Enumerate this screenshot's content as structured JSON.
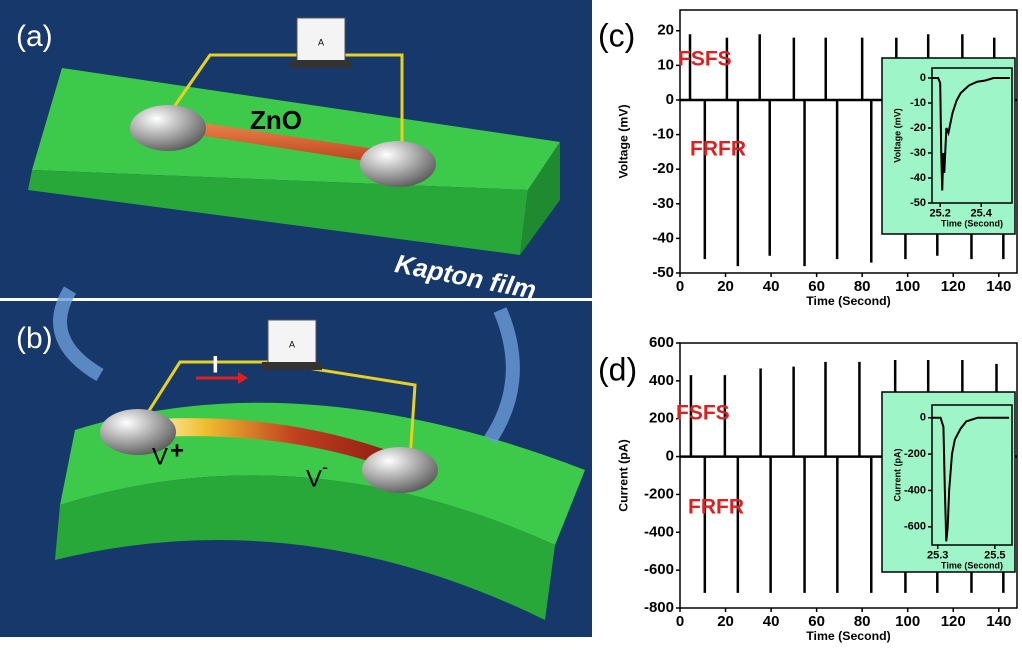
{
  "illustration": {
    "panels": [
      "(a)",
      "(b)"
    ],
    "wire": "ZnO",
    "film": "Kapton film",
    "meter": "A",
    "current": "I",
    "v_plus": "V",
    "plus": "+",
    "v_minus": "V",
    "minus": "-"
  },
  "chart_data": [
    {
      "type": "spike",
      "label": "(c)",
      "xlabel": "Time (Second)",
      "ylabel": "Voltage (mV)",
      "annotations": [
        "FSFS",
        "FRFR"
      ],
      "x": [
        4.4,
        10.9,
        20.6,
        25.4,
        35,
        39.4,
        50,
        54.7,
        64,
        69,
        80,
        84,
        95,
        99,
        109,
        113,
        124,
        128,
        138,
        142
      ],
      "values": [
        19,
        -46,
        18,
        -48,
        19,
        -45,
        18,
        -48,
        18,
        -46,
        18,
        -47,
        18,
        -46,
        19,
        -45,
        19,
        -46,
        18,
        -46
      ],
      "color": "#000000",
      "xlim": [
        0,
        148
      ],
      "xticks": [
        0,
        20,
        40,
        60,
        80,
        100,
        120,
        140
      ],
      "ylim": [
        -50,
        26
      ],
      "yticks": [
        -50,
        -40,
        -30,
        -20,
        -10,
        0,
        10,
        20
      ],
      "inset": {
        "type": "line",
        "xlabel": "Time (Second)",
        "ylabel": "Voltage (mV)",
        "color": "#000000",
        "x": [
          25.16,
          25.19,
          25.2,
          25.205,
          25.21,
          25.215,
          25.22,
          25.23,
          25.24,
          25.26,
          25.28,
          25.3,
          25.34,
          25.38,
          25.42,
          25.46,
          25.5,
          25.54
        ],
        "values": [
          0,
          0,
          -2,
          -30,
          -45,
          -30,
          -38,
          -20,
          -22,
          -14,
          -9,
          -6,
          -3,
          -1.5,
          -1,
          0,
          0,
          0
        ],
        "xlim": [
          25.16,
          25.55
        ],
        "xticks": [
          25.2,
          25.4
        ],
        "ylim": [
          -50,
          4
        ],
        "yticks": [
          -50,
          -40,
          -30,
          -20,
          -10,
          0
        ]
      }
    },
    {
      "type": "spike",
      "label": "(d)",
      "xlabel": "Time (Second)",
      "ylabel": "Current (pA)",
      "annotations": [
        "FSFS",
        "FRFR"
      ],
      "x": [
        4.8,
        10.9,
        19.7,
        25.4,
        35.4,
        39.8,
        49.9,
        54.7,
        63.9,
        69.1,
        78.8,
        84,
        94.5,
        99,
        109,
        113,
        124,
        128,
        139,
        142
      ],
      "values": [
        430,
        -720,
        430,
        -720,
        465,
        -720,
        475,
        -720,
        500,
        -720,
        500,
        -720,
        510,
        -720,
        510,
        -720,
        510,
        -720,
        490,
        -720
      ],
      "color": "#000000",
      "xlim": [
        0,
        148
      ],
      "xticks": [
        0,
        20,
        40,
        60,
        80,
        100,
        120,
        140
      ],
      "ylim": [
        -800,
        600
      ],
      "yticks": [
        -800,
        -600,
        -400,
        -200,
        0,
        200,
        400,
        600
      ],
      "inset": {
        "type": "line",
        "xlabel": "Time (Second)",
        "ylabel": "Current (pA)",
        "color": "#000000",
        "x": [
          25.28,
          25.31,
          25.32,
          25.325,
          25.33,
          25.335,
          25.34,
          25.35,
          25.36,
          25.38,
          25.4,
          25.44,
          25.5,
          25.55
        ],
        "values": [
          0,
          0,
          -50,
          -400,
          -680,
          -600,
          -400,
          -200,
          -120,
          -60,
          -20,
          0,
          0,
          0
        ],
        "xlim": [
          25.28,
          25.56
        ],
        "xticks": [
          25.3,
          25.5
        ],
        "ylim": [
          -700,
          70
        ],
        "yticks": [
          -600,
          -400,
          -200,
          0
        ]
      }
    }
  ]
}
